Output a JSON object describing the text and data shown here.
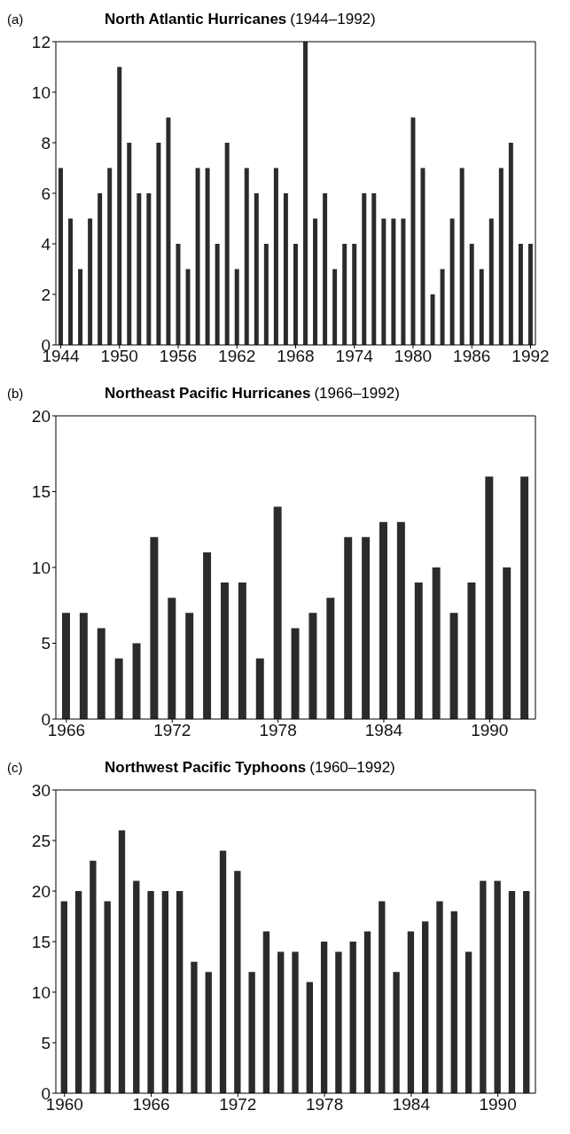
{
  "chart_data": [
    {
      "type": "bar",
      "title": "North Atlantic Hurricanes",
      "subtitle": "(1944–1992)",
      "annotations": [
        "(a)"
      ],
      "color": "#2b2b2b",
      "x": [
        1944,
        1945,
        1946,
        1947,
        1948,
        1949,
        1950,
        1951,
        1952,
        1953,
        1954,
        1955,
        1956,
        1957,
        1958,
        1959,
        1960,
        1961,
        1962,
        1963,
        1964,
        1965,
        1966,
        1967,
        1968,
        1969,
        1970,
        1971,
        1972,
        1973,
        1974,
        1975,
        1976,
        1977,
        1978,
        1979,
        1980,
        1981,
        1982,
        1983,
        1984,
        1985,
        1986,
        1987,
        1988,
        1989,
        1990,
        1991,
        1992
      ],
      "values": [
        7,
        5,
        3,
        5,
        6,
        7,
        11,
        8,
        6,
        6,
        8,
        9,
        4,
        3,
        7,
        7,
        4,
        8,
        3,
        7,
        6,
        4,
        7,
        6,
        4,
        12,
        5,
        6,
        3,
        4,
        4,
        6,
        6,
        5,
        5,
        5,
        9,
        7,
        2,
        3,
        5,
        7,
        4,
        3,
        5,
        7,
        8,
        4,
        4
      ],
      "xlim": [
        1943.5,
        1992.5
      ],
      "xticks": [
        1944,
        1950,
        1956,
        1962,
        1968,
        1974,
        1980,
        1986,
        1992
      ],
      "ylim": [
        0,
        12
      ],
      "yticks": [
        0,
        2,
        4,
        6,
        8,
        10,
        12
      ],
      "grid": false,
      "legend": false
    },
    {
      "type": "bar",
      "title": "Northeast Pacific Hurricanes",
      "subtitle": "(1966–1992)",
      "annotations": [
        "(b)"
      ],
      "color": "#2b2b2b",
      "x": [
        1966,
        1967,
        1968,
        1969,
        1970,
        1971,
        1972,
        1973,
        1974,
        1975,
        1976,
        1977,
        1978,
        1979,
        1980,
        1981,
        1982,
        1983,
        1984,
        1985,
        1986,
        1987,
        1988,
        1989,
        1990,
        1991,
        1992
      ],
      "values": [
        7,
        7,
        6,
        4,
        5,
        12,
        8,
        7,
        11,
        9,
        9,
        4,
        14,
        6,
        7,
        8,
        12,
        12,
        13,
        13,
        9,
        10,
        7,
        9,
        16,
        10,
        16
      ],
      "xlim": [
        1965.4,
        1992.6
      ],
      "xticks": [
        1966,
        1972,
        1978,
        1984,
        1990
      ],
      "ylim": [
        0,
        20
      ],
      "yticks": [
        0,
        5,
        10,
        15,
        20
      ],
      "grid": false,
      "legend": false
    },
    {
      "type": "bar",
      "title": "Northwest Pacific Typhoons",
      "subtitle": "(1960–1992)",
      "annotations": [
        "(c)"
      ],
      "color": "#2b2b2b",
      "x": [
        1960,
        1961,
        1962,
        1963,
        1964,
        1965,
        1966,
        1967,
        1968,
        1969,
        1970,
        1971,
        1972,
        1973,
        1974,
        1975,
        1976,
        1977,
        1978,
        1979,
        1980,
        1981,
        1982,
        1983,
        1984,
        1985,
        1986,
        1987,
        1988,
        1989,
        1990,
        1991,
        1992
      ],
      "values": [
        19,
        20,
        23,
        19,
        26,
        21,
        20,
        20,
        20,
        13,
        12,
        24,
        22,
        12,
        16,
        14,
        14,
        11,
        15,
        14,
        15,
        16,
        19,
        12,
        16,
        17,
        19,
        18,
        14,
        21,
        21,
        20,
        20
      ],
      "xlim": [
        1959.4,
        1992.6
      ],
      "xticks": [
        1960,
        1966,
        1972,
        1978,
        1984,
        1990
      ],
      "ylim": [
        0,
        30
      ],
      "yticks": [
        0,
        5,
        10,
        15,
        20,
        25,
        30
      ],
      "grid": false,
      "legend": false
    }
  ]
}
